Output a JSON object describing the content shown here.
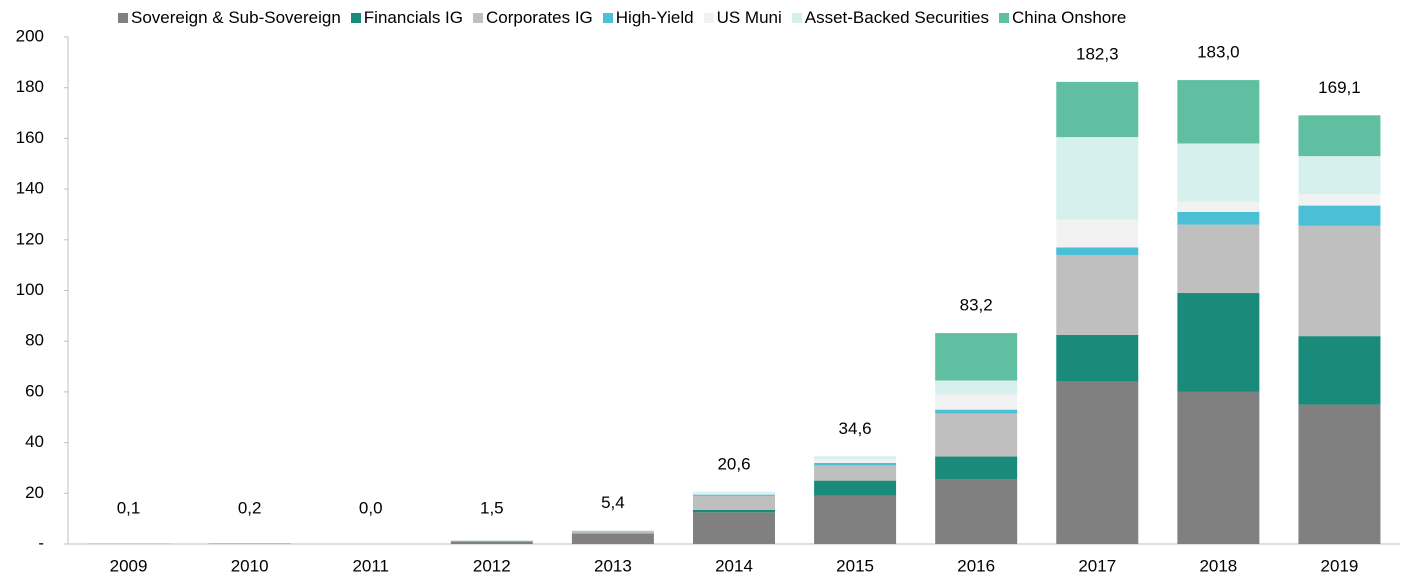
{
  "chart_data": {
    "type": "stacked_bar",
    "categories": [
      "2009",
      "2010",
      "2011",
      "2012",
      "2013",
      "2014",
      "2015",
      "2016",
      "2017",
      "2018",
      "2019"
    ],
    "series": [
      {
        "name": "Sovereign & Sub-Sovereign",
        "color": "#808080",
        "values": [
          0.1,
          0.2,
          0.0,
          1.0,
          4.0,
          12.5,
          19,
          25.5,
          64,
          60,
          55
        ]
      },
      {
        "name": "Financials IG",
        "color": "#1a8a7a",
        "values": [
          0,
          0,
          0,
          0,
          0.2,
          1,
          6,
          9,
          18.5,
          39,
          27
        ]
      },
      {
        "name": "Corporates IG",
        "color": "#bfbfbf",
        "values": [
          0,
          0,
          0,
          0.3,
          1,
          5.5,
          6,
          17,
          31.5,
          27,
          43.5
        ]
      },
      {
        "name": "High-Yield",
        "color": "#4bbfd6",
        "values": [
          0,
          0,
          0,
          0,
          0,
          0.5,
          1,
          1.5,
          3,
          5,
          8
        ]
      },
      {
        "name": "US Muni",
        "color": "#f2f2f2",
        "values": [
          0,
          0,
          0,
          0,
          0,
          0.5,
          1.5,
          6,
          11,
          4,
          4.5
        ]
      },
      {
        "name": "Asset-Backed Securities",
        "color": "#d6f0ee",
        "values": [
          0,
          0,
          0,
          0.2,
          0.2,
          0.6,
          1.1,
          5.5,
          32.5,
          23,
          15
        ]
      },
      {
        "name": "China Onshore",
        "color": "#5fbfa0",
        "values": [
          0,
          0,
          0,
          0,
          0,
          0,
          0,
          18.7,
          21.8,
          25,
          16.1
        ]
      }
    ],
    "totals": [
      0.1,
      0.2,
      0.0,
      1.5,
      5.4,
      20.6,
      34.6,
      83.2,
      182.3,
      183.0,
      169.1
    ],
    "total_labels": [
      "0,1",
      "0,2",
      "0,0",
      "1,5",
      "5,4",
      "20,6",
      "34,6",
      "83,2",
      "182,3",
      "183,0",
      "169,1"
    ],
    "ylim": [
      0,
      200
    ],
    "yticks": [
      {
        "value": 0,
        "label": "-"
      },
      20,
      40,
      60,
      80,
      100,
      120,
      140,
      160,
      180,
      200
    ],
    "grid": false
  }
}
